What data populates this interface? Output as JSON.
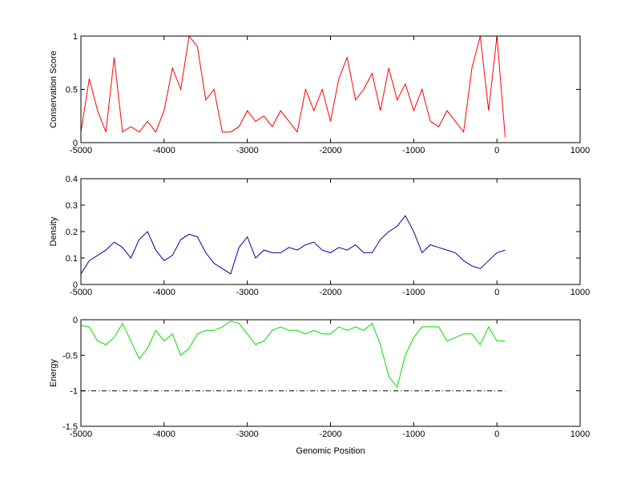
{
  "chart_data": [
    {
      "type": "line",
      "ylabel": "Conservation Score",
      "x": [
        -5000,
        -4900,
        -4800,
        -4700,
        -4600,
        -4500,
        -4400,
        -4300,
        -4200,
        -4100,
        -4000,
        -3900,
        -3800,
        -3700,
        -3600,
        -3500,
        -3400,
        -3300,
        -3200,
        -3100,
        -3000,
        -2900,
        -2800,
        -2700,
        -2600,
        -2500,
        -2400,
        -2300,
        -2200,
        -2100,
        -2000,
        -1900,
        -1800,
        -1700,
        -1600,
        -1500,
        -1400,
        -1300,
        -1200,
        -1100,
        -1000,
        -900,
        -800,
        -700,
        -600,
        -500,
        -400,
        -300,
        -200,
        -100,
        0,
        100
      ],
      "series": [
        {
          "color": "#ff0000",
          "values": [
            0.1,
            0.6,
            0.3,
            0.1,
            0.8,
            0.1,
            0.15,
            0.1,
            0.2,
            0.1,
            0.3,
            0.7,
            0.5,
            1,
            0.9,
            0.4,
            0.5,
            0.1,
            0.1,
            0.15,
            0.3,
            0.2,
            0.25,
            0.15,
            0.3,
            0.2,
            0.1,
            0.5,
            0.3,
            0.5,
            0.2,
            0.6,
            0.8,
            0.4,
            0.5,
            0.65,
            0.3,
            0.7,
            0.4,
            0.55,
            0.3,
            0.5,
            0.2,
            0.15,
            0.3,
            0.2,
            0.1,
            0.7,
            1,
            0.3,
            1,
            0.05
          ]
        }
      ],
      "xlim": [
        -5000,
        1000
      ],
      "xticks": [
        -5000,
        -4000,
        -3000,
        -2000,
        -1000,
        0,
        1000
      ],
      "ylim": [
        0,
        1
      ],
      "yticks": [
        0,
        0.5,
        1
      ]
    },
    {
      "type": "line",
      "ylabel": "Density",
      "x": [
        -5000,
        -4900,
        -4800,
        -4700,
        -4600,
        -4500,
        -4400,
        -4300,
        -4200,
        -4100,
        -4000,
        -3900,
        -3800,
        -3700,
        -3600,
        -3500,
        -3400,
        -3300,
        -3200,
        -3100,
        -3000,
        -2900,
        -2800,
        -2700,
        -2600,
        -2500,
        -2400,
        -2300,
        -2200,
        -2100,
        -2000,
        -1900,
        -1800,
        -1700,
        -1600,
        -1500,
        -1400,
        -1300,
        -1200,
        -1100,
        -1000,
        -900,
        -800,
        -700,
        -600,
        -500,
        -400,
        -300,
        -200,
        -100,
        0,
        100
      ],
      "series": [
        {
          "color": "#0000aa",
          "values": [
            0.04,
            0.09,
            0.11,
            0.13,
            0.16,
            0.14,
            0.1,
            0.17,
            0.2,
            0.13,
            0.09,
            0.11,
            0.17,
            0.19,
            0.18,
            0.12,
            0.08,
            0.06,
            0.04,
            0.14,
            0.18,
            0.1,
            0.13,
            0.12,
            0.12,
            0.14,
            0.13,
            0.15,
            0.16,
            0.13,
            0.12,
            0.14,
            0.13,
            0.15,
            0.12,
            0.12,
            0.17,
            0.2,
            0.22,
            0.26,
            0.2,
            0.12,
            0.15,
            0.14,
            0.13,
            0.12,
            0.09,
            0.07,
            0.06,
            0.09,
            0.12,
            0.13
          ]
        }
      ],
      "xlim": [
        -5000,
        1000
      ],
      "xticks": [
        -5000,
        -4000,
        -3000,
        -2000,
        -1000,
        0,
        1000
      ],
      "ylim": [
        0,
        0.4
      ],
      "yticks": [
        0,
        0.1,
        0.2,
        0.3,
        0.4
      ]
    },
    {
      "type": "line",
      "ylabel": "Energy",
      "xlabel": "Genomic Position",
      "x": [
        -5000,
        -4900,
        -4800,
        -4700,
        -4600,
        -4500,
        -4400,
        -4300,
        -4200,
        -4100,
        -4000,
        -3900,
        -3800,
        -3700,
        -3600,
        -3500,
        -3400,
        -3300,
        -3200,
        -3100,
        -3000,
        -2900,
        -2800,
        -2700,
        -2600,
        -2500,
        -2400,
        -2300,
        -2200,
        -2100,
        -2000,
        -1900,
        -1800,
        -1700,
        -1600,
        -1500,
        -1400,
        -1300,
        -1200,
        -1100,
        -1000,
        -900,
        -800,
        -700,
        -600,
        -500,
        -400,
        -300,
        -200,
        -100,
        0,
        100
      ],
      "series": [
        {
          "color": "#00dd00",
          "values": [
            -0.08,
            -0.1,
            -0.3,
            -0.35,
            -0.25,
            -0.05,
            -0.3,
            -0.55,
            -0.4,
            -0.15,
            -0.3,
            -0.2,
            -0.5,
            -0.4,
            -0.2,
            -0.15,
            -0.15,
            -0.1,
            -0.02,
            -0.05,
            -0.2,
            -0.35,
            -0.3,
            -0.15,
            -0.1,
            -0.15,
            -0.15,
            -0.2,
            -0.15,
            -0.2,
            -0.2,
            -0.1,
            -0.15,
            -0.1,
            -0.15,
            -0.05,
            -0.35,
            -0.8,
            -0.95,
            -0.5,
            -0.25,
            -0.1,
            -0.1,
            -0.1,
            -0.3,
            -0.25,
            -0.2,
            -0.2,
            -0.35,
            -0.1,
            -0.3,
            -0.3
          ]
        },
        {
          "color": "#000000",
          "style": "dashdot",
          "x": [
            -5000,
            100
          ],
          "values": [
            -1,
            -1
          ]
        }
      ],
      "xlim": [
        -5000,
        1000
      ],
      "xticks": [
        -5000,
        -4000,
        -3000,
        -2000,
        -1000,
        0,
        1000
      ],
      "ylim": [
        -1.5,
        0
      ],
      "yticks": [
        -1.5,
        -1,
        -0.5,
        0
      ]
    }
  ]
}
